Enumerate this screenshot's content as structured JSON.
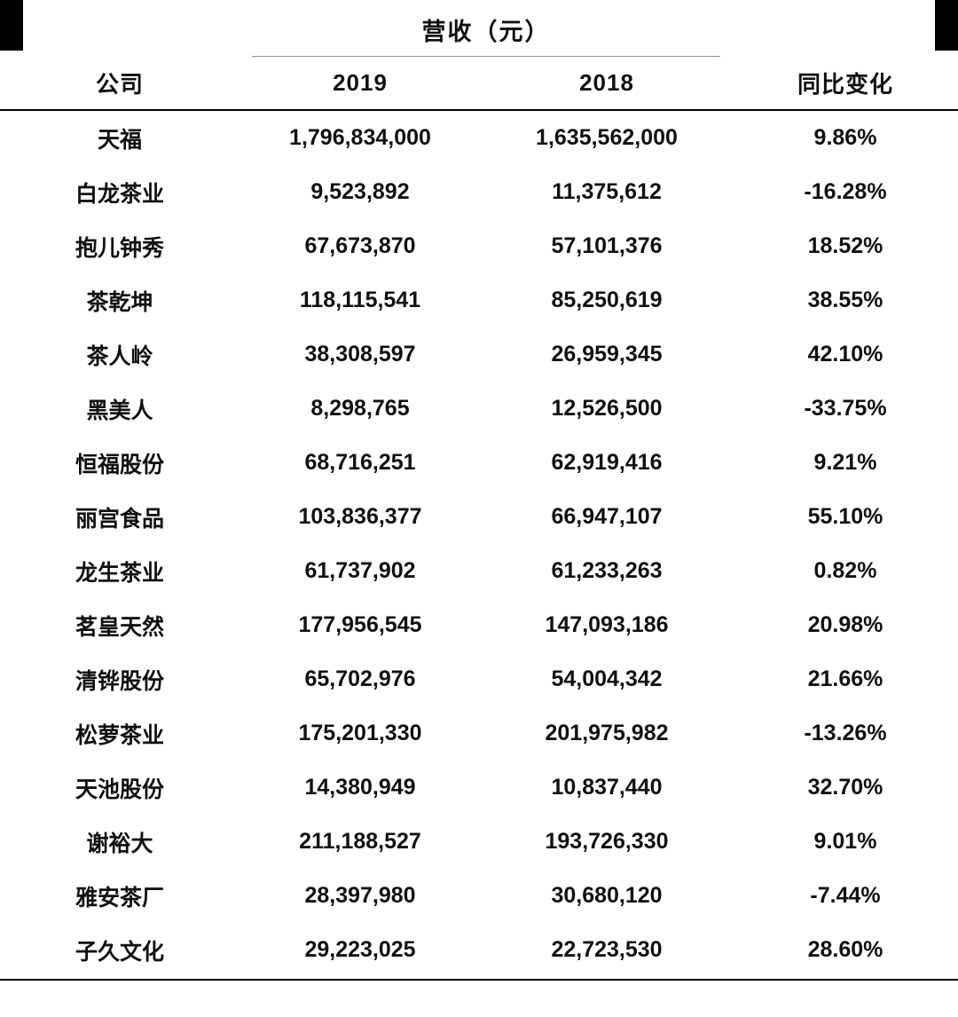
{
  "chart_data": {
    "type": "table",
    "title": "营收（元）",
    "span_header": {
      "label": "营收（元）",
      "spans_columns": [
        "2019",
        "2018"
      ]
    },
    "columns": [
      "公司",
      "2019",
      "2018",
      "同比变化"
    ],
    "rows": [
      [
        "天福",
        "1,796,834,000",
        "1,635,562,000",
        "9.86%"
      ],
      [
        "白龙茶业",
        "9,523,892",
        "11,375,612",
        "-16.28%"
      ],
      [
        "抱儿钟秀",
        "67,673,870",
        "57,101,376",
        "18.52%"
      ],
      [
        "茶乾坤",
        "118,115,541",
        "85,250,619",
        "38.55%"
      ],
      [
        "茶人岭",
        "38,308,597",
        "26,959,345",
        "42.10%"
      ],
      [
        "黑美人",
        "8,298,765",
        "12,526,500",
        "-33.75%"
      ],
      [
        "恒福股份",
        "68,716,251",
        "62,919,416",
        "9.21%"
      ],
      [
        "丽宫食品",
        "103,836,377",
        "66,947,107",
        "55.10%"
      ],
      [
        "龙生茶业",
        "61,737,902",
        "61,233,263",
        "0.82%"
      ],
      [
        "茗皇天然",
        "177,956,545",
        "147,093,186",
        "20.98%"
      ],
      [
        "清铧股份",
        "65,702,976",
        "54,004,342",
        "21.66%"
      ],
      [
        "松萝茶业",
        "175,201,330",
        "201,975,982",
        "-13.26%"
      ],
      [
        "天池股份",
        "14,380,949",
        "10,837,440",
        "32.70%"
      ],
      [
        "谢裕大",
        "211,188,527",
        "193,726,330",
        "9.01%"
      ],
      [
        "雅安茶厂",
        "28,397,980",
        "30,680,120",
        "-7.44%"
      ],
      [
        "子久文化",
        "29,223,025",
        "22,723,530",
        "28.60%"
      ]
    ],
    "colors": {
      "text": "#111111",
      "header_rule": "#000000",
      "span_underline": "#8f8f8f",
      "background": "#ffffff"
    },
    "layout_hints": {
      "grid": "off",
      "header_rule_full_width": true,
      "bottom_rule_full_width": true
    }
  }
}
